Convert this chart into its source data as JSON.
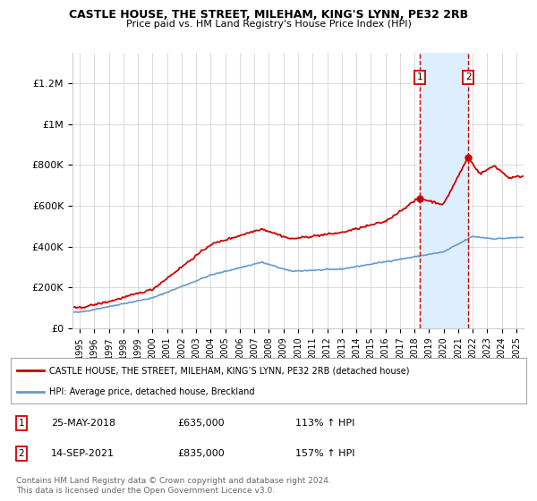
{
  "title1": "CASTLE HOUSE, THE STREET, MILEHAM, KING'S LYNN, PE32 2RB",
  "title2": "Price paid vs. HM Land Registry's House Price Index (HPI)",
  "ylabel_ticks": [
    "£0",
    "£200K",
    "£400K",
    "£600K",
    "£800K",
    "£1M",
    "£1.2M"
  ],
  "ytick_vals": [
    0,
    200000,
    400000,
    600000,
    800000,
    1000000,
    1200000
  ],
  "ylim": [
    0,
    1350000
  ],
  "xlim_start": 1994.5,
  "xlim_end": 2025.5,
  "red_color": "#cc0000",
  "blue_color": "#6699cc",
  "sale1_x": 2018.38,
  "sale1_y": 635000,
  "sale2_x": 2021.71,
  "sale2_y": 835000,
  "legend_entry1": "CASTLE HOUSE, THE STREET, MILEHAM, KING’S LYNN, PE32 2RB (detached house)",
  "legend_entry2": "HPI: Average price, detached house, Breckland",
  "ann1_date": "25-MAY-2018",
  "ann1_price": "£635,000",
  "ann1_hpi": "113% ↑ HPI",
  "ann2_date": "14-SEP-2021",
  "ann2_price": "£835,000",
  "ann2_hpi": "157% ↑ HPI",
  "footer": "Contains HM Land Registry data © Crown copyright and database right 2024.\nThis data is licensed under the Open Government Licence v3.0.",
  "shade_color": "#ddeeff",
  "grid_color": "#cccccc",
  "bg_color": "#ffffff"
}
